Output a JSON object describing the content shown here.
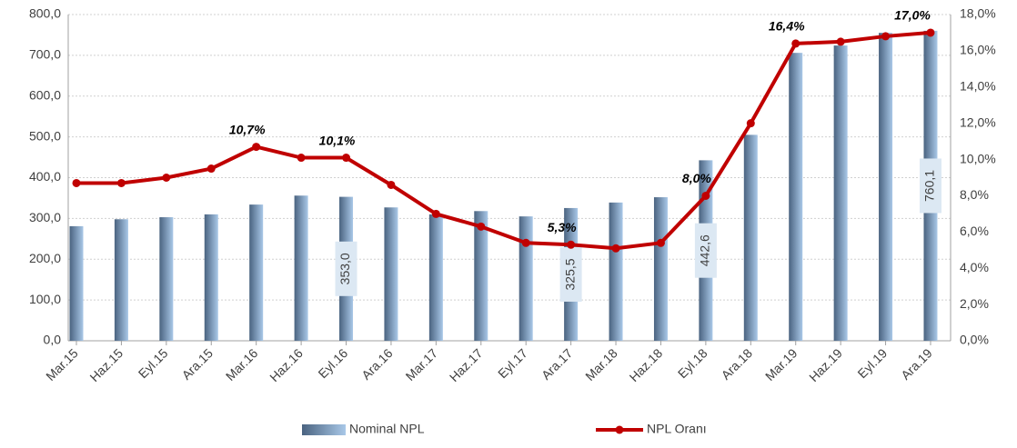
{
  "chart_data": {
    "type": "bar-line",
    "categories": [
      "Mar.15",
      "Haz.15",
      "Eyl.15",
      "Ara.15",
      "Mar.16",
      "Haz.16",
      "Eyl.16",
      "Ara.16",
      "Mar.17",
      "Haz.17",
      "Eyl.17",
      "Ara.17",
      "Mar.18",
      "Haz.18",
      "Eyl.18",
      "Ara.18",
      "Mar.19",
      "Haz.19",
      "Eyl.19",
      "Ara.19"
    ],
    "series": [
      {
        "name": "Nominal NPL",
        "type": "bar",
        "color": "#7f9fc0",
        "values": [
          281,
          298,
          303,
          310,
          334,
          356,
          353,
          327,
          310,
          318,
          305,
          325.5,
          339,
          352,
          442.6,
          505,
          706,
          724,
          755,
          760.1
        ],
        "value_labels": [
          null,
          null,
          null,
          null,
          null,
          null,
          "353,0",
          null,
          null,
          null,
          null,
          "325,5",
          null,
          null,
          "442,6",
          null,
          null,
          null,
          null,
          "760,1"
        ]
      },
      {
        "name": "NPL Oranı",
        "type": "line",
        "axis": "y2",
        "color": "#c00000",
        "values": [
          8.7,
          8.7,
          9.0,
          9.5,
          10.7,
          10.1,
          10.1,
          8.6,
          7.0,
          6.3,
          5.4,
          5.3,
          5.1,
          5.4,
          8.0,
          12.0,
          16.4,
          16.5,
          16.8,
          17.0
        ],
        "value_labels": [
          null,
          null,
          null,
          null,
          "10,7%",
          null,
          "10,1%",
          null,
          null,
          null,
          null,
          "5,3%",
          null,
          null,
          "8,0%",
          null,
          "16,4%",
          null,
          null,
          "17,0%"
        ]
      }
    ],
    "ylim": [
      0,
      800
    ],
    "yticks": [
      {
        "value": 0,
        "label": "0,0"
      },
      {
        "value": 100,
        "label": "100,0"
      },
      {
        "value": 200,
        "label": "200,0"
      },
      {
        "value": 300,
        "label": "300,0"
      },
      {
        "value": 400,
        "label": "400,0"
      },
      {
        "value": 500,
        "label": "500,0"
      },
      {
        "value": 600,
        "label": "600,0"
      },
      {
        "value": 700,
        "label": "700,0"
      },
      {
        "value": 800,
        "label": "800,0"
      }
    ],
    "y2lim": [
      0,
      18
    ],
    "y2ticks": [
      {
        "value": 0,
        "label": "0,0%"
      },
      {
        "value": 2,
        "label": "2,0%"
      },
      {
        "value": 4,
        "label": "4,0%"
      },
      {
        "value": 6,
        "label": "6,0%"
      },
      {
        "value": 8,
        "label": "8,0%"
      },
      {
        "value": 10,
        "label": "10,0%"
      },
      {
        "value": 12,
        "label": "12,0%"
      },
      {
        "value": 14,
        "label": "14,0%"
      },
      {
        "value": 16,
        "label": "16,0%"
      },
      {
        "value": 18,
        "label": "18,0%"
      }
    ],
    "grid": true
  }
}
